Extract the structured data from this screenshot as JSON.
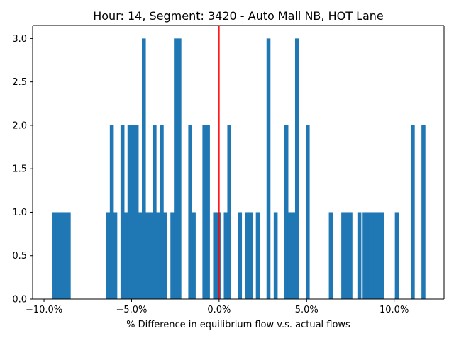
{
  "chart_data": {
    "type": "bar",
    "chart_kind": "histogram",
    "title": "Hour: 14, Segment: 3420 - Auto Mall NB, HOT Lane",
    "xlabel": "% Difference in equilibrium flow v.s. actual flows",
    "ylabel": "",
    "xlim": [
      -0.1065,
      0.1285
    ],
    "ylim": [
      0,
      3.15
    ],
    "bin_width": 0.00213,
    "x_ticks": [
      {
        "value": -0.1,
        "label": "−10.0%"
      },
      {
        "value": -0.05,
        "label": "−5.0%"
      },
      {
        "value": 0.0,
        "label": "0.0%"
      },
      {
        "value": 0.05,
        "label": "5.0%"
      },
      {
        "value": 0.1,
        "label": "10.0%"
      }
    ],
    "y_ticks": [
      {
        "value": 0.0,
        "label": "0.0"
      },
      {
        "value": 0.5,
        "label": "0.5"
      },
      {
        "value": 1.0,
        "label": "1.0"
      },
      {
        "value": 1.5,
        "label": "1.5"
      },
      {
        "value": 2.0,
        "label": "2.0"
      },
      {
        "value": 2.5,
        "label": "2.5"
      },
      {
        "value": 3.0,
        "label": "3.0"
      }
    ],
    "grid": false,
    "bar_color": "#1f77b4",
    "reference_line": {
      "x": 0.0,
      "color": "#ff0000"
    },
    "bins": [
      {
        "start": -0.0955,
        "count": 1
      },
      {
        "start": -0.0934,
        "count": 1
      },
      {
        "start": -0.0913,
        "count": 1
      },
      {
        "start": -0.0892,
        "count": 1
      },
      {
        "start": -0.087,
        "count": 1
      },
      {
        "start": -0.0645,
        "count": 1
      },
      {
        "start": -0.0624,
        "count": 2
      },
      {
        "start": -0.0604,
        "count": 1
      },
      {
        "start": -0.0563,
        "count": 2
      },
      {
        "start": -0.0543,
        "count": 1
      },
      {
        "start": -0.0523,
        "count": 2
      },
      {
        "start": -0.0502,
        "count": 2
      },
      {
        "start": -0.0482,
        "count": 2
      },
      {
        "start": -0.0462,
        "count": 1
      },
      {
        "start": -0.0441,
        "count": 3
      },
      {
        "start": -0.0421,
        "count": 1
      },
      {
        "start": -0.04,
        "count": 1
      },
      {
        "start": -0.038,
        "count": 2
      },
      {
        "start": -0.036,
        "count": 1
      },
      {
        "start": -0.0339,
        "count": 2
      },
      {
        "start": -0.0319,
        "count": 1
      },
      {
        "start": -0.0278,
        "count": 1
      },
      {
        "start": -0.0258,
        "count": 3
      },
      {
        "start": -0.0238,
        "count": 3
      },
      {
        "start": -0.0176,
        "count": 2
      },
      {
        "start": -0.0156,
        "count": 1
      },
      {
        "start": -0.0095,
        "count": 2
      },
      {
        "start": -0.0075,
        "count": 2
      },
      {
        "start": -0.0034,
        "count": 1
      },
      {
        "start": -0.0014,
        "count": 1
      },
      {
        "start": 0.0027,
        "count": 1
      },
      {
        "start": 0.0047,
        "count": 2
      },
      {
        "start": 0.0108,
        "count": 1
      },
      {
        "start": 0.0149,
        "count": 1
      },
      {
        "start": 0.0169,
        "count": 1
      },
      {
        "start": 0.021,
        "count": 1
      },
      {
        "start": 0.0271,
        "count": 3
      },
      {
        "start": 0.0312,
        "count": 1
      },
      {
        "start": 0.0373,
        "count": 2
      },
      {
        "start": 0.0393,
        "count": 1
      },
      {
        "start": 0.0414,
        "count": 1
      },
      {
        "start": 0.0434,
        "count": 3
      },
      {
        "start": 0.0495,
        "count": 2
      },
      {
        "start": 0.0627,
        "count": 1
      },
      {
        "start": 0.0698,
        "count": 1
      },
      {
        "start": 0.0719,
        "count": 1
      },
      {
        "start": 0.0739,
        "count": 1
      },
      {
        "start": 0.079,
        "count": 1
      },
      {
        "start": 0.082,
        "count": 1
      },
      {
        "start": 0.0841,
        "count": 1
      },
      {
        "start": 0.0861,
        "count": 1
      },
      {
        "start": 0.0881,
        "count": 1
      },
      {
        "start": 0.0902,
        "count": 1
      },
      {
        "start": 0.0922,
        "count": 1
      },
      {
        "start": 0.1004,
        "count": 1
      },
      {
        "start": 0.1095,
        "count": 2
      },
      {
        "start": 0.1156,
        "count": 2
      }
    ]
  }
}
